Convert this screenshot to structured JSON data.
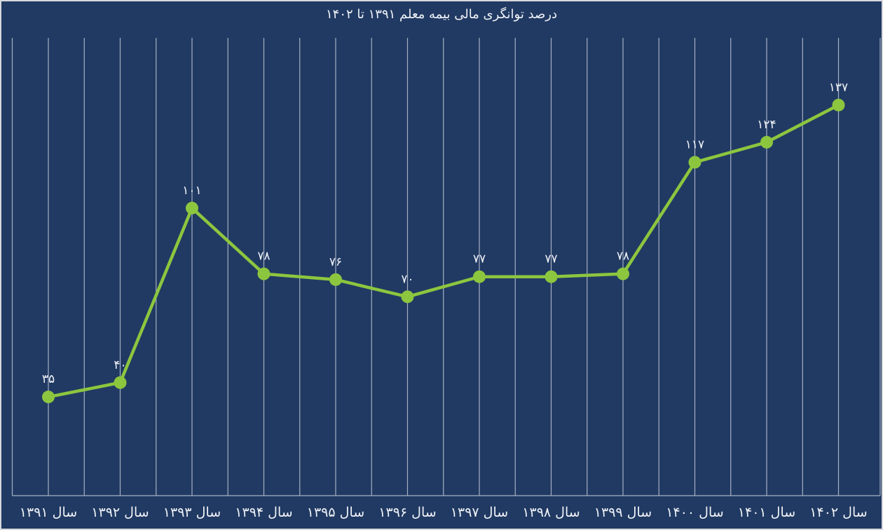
{
  "chart_data": {
    "type": "line",
    "title": "درصد توانگری مالی بیمه معلم ۱۳۹۱ تا ۱۴۰۲",
    "categories": [
      "سال ۱۳۹۱",
      "سال ۱۳۹۲",
      "سال ۱۳۹۳",
      "سال ۱۳۹۴",
      "سال ۱۳۹۵",
      "سال ۱۳۹۶",
      "سال ۱۳۹۷",
      "سال ۱۳۹۸",
      "سال ۱۳۹۹",
      "سال ۱۴۰۰",
      "سال ۱۴۰۱",
      "سال ۱۴۰۲"
    ],
    "values": [
      35,
      40,
      101,
      78,
      76,
      70,
      77,
      77,
      78,
      117,
      124,
      137
    ],
    "value_labels": [
      "۳۵",
      "۴۰",
      "۱۰۱",
      "۷۸",
      "۷۶",
      "۷۰",
      "۷۷",
      "۷۷",
      "۷۸",
      "۱۱۷",
      "۱۲۴",
      "۱۳۷"
    ],
    "xlabel": "",
    "ylabel": "",
    "ylim": [
      0,
      160
    ],
    "grid": "vertical-only",
    "legend": "none",
    "colors": {
      "background": "#213a63",
      "line": "#8cc63f",
      "marker": "#8cc63f",
      "gridline": "#a6b0c4",
      "axis": "#a6b0c4",
      "text": "#f0f3f8"
    }
  }
}
